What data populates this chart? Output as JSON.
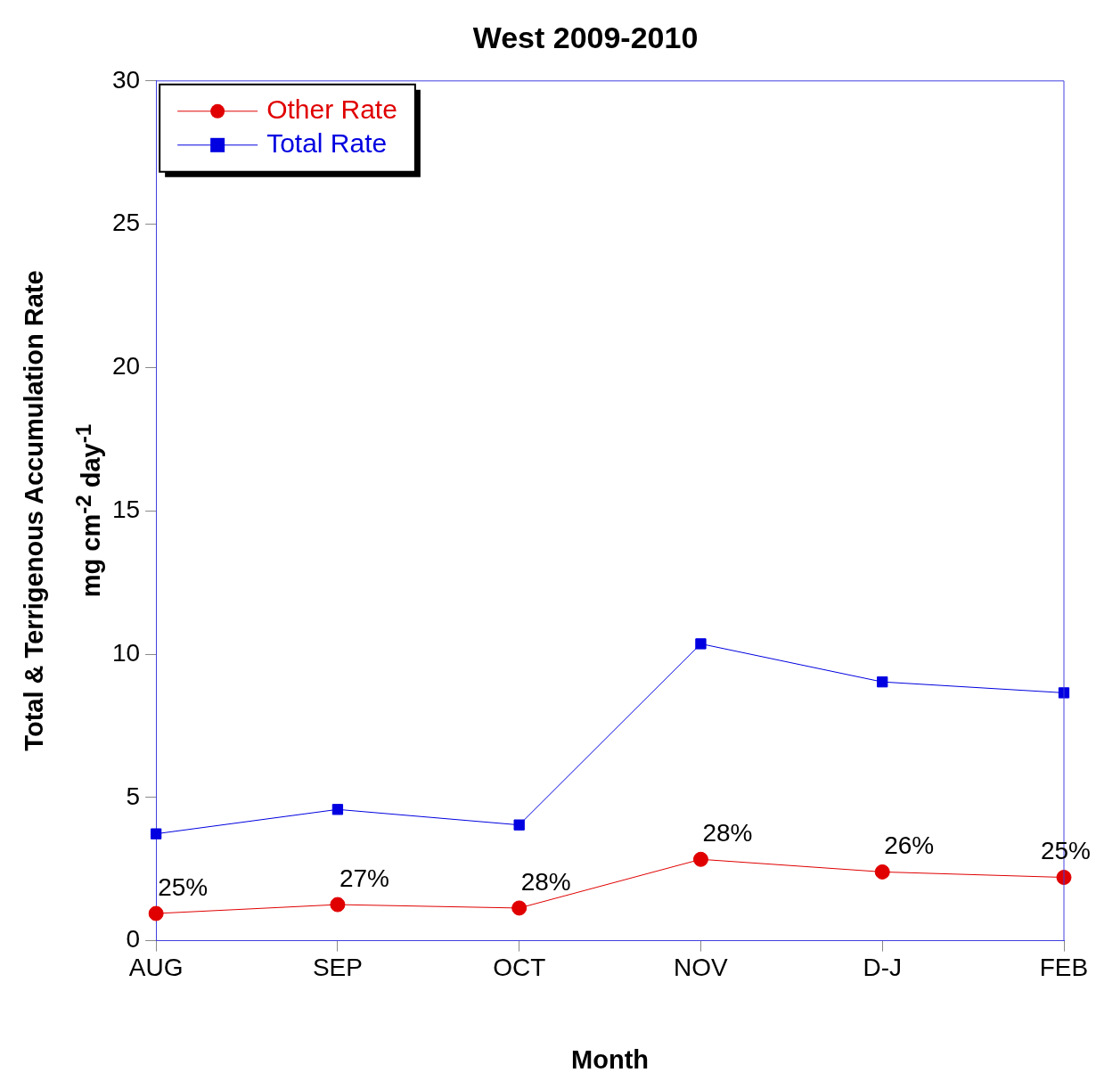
{
  "chart_data": {
    "type": "line",
    "title": "West 2009-2010",
    "xlabel": "Month",
    "ylabel": "Total & Terrigenous Accumulation Rate\nmg cm$^{-2}$ day$^{-1}$",
    "categories": [
      "AUG",
      "SEP",
      "OCT",
      "NOV",
      "D-J",
      "FEB"
    ],
    "series": [
      {
        "name": "Other Rate",
        "color": "#e00000",
        "marker": "circle",
        "values": [
          0.95,
          1.26,
          1.14,
          2.84,
          2.4,
          2.21
        ]
      },
      {
        "name": "Total Rate",
        "color": "#0000e0",
        "marker": "square",
        "values": [
          3.73,
          4.58,
          4.04,
          10.36,
          9.03,
          8.65
        ]
      }
    ],
    "annotations": [
      {
        "text": "25%",
        "x": "AUG",
        "y": 0.95
      },
      {
        "text": "27%",
        "x": "SEP",
        "y": 1.26
      },
      {
        "text": "28%",
        "x": "OCT",
        "y": 1.14
      },
      {
        "text": "28%",
        "x": "NOV",
        "y": 2.84
      },
      {
        "text": "26%",
        "x": "D-J",
        "y": 2.4
      },
      {
        "text": "25%",
        "x": "FEB",
        "y": 2.21
      }
    ],
    "ylim": [
      0,
      30
    ],
    "yticks": [
      0,
      5,
      10,
      15,
      20,
      25,
      30
    ],
    "grid": false,
    "legend": "top left",
    "line_style": "solid"
  }
}
